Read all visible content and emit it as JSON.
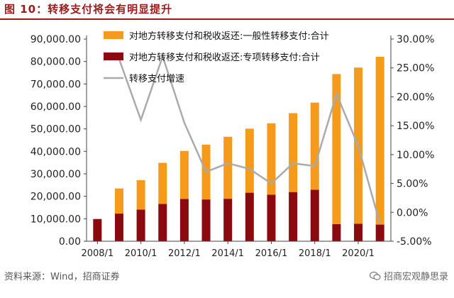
{
  "figure": {
    "title": "图 10：转移支付将会有明显提升",
    "source": "资料来源：Wind，招商证券",
    "watermark": "招商宏观静思录"
  },
  "colors": {
    "general_transfer": "#f59a1a",
    "special_transfer": "#8b0a0f",
    "growth_line": "#aaaaaa",
    "title_red": "#9b1b1b"
  },
  "chart_data": {
    "type": "bar",
    "stacked": true,
    "categories": [
      "2008/1",
      "2009/1",
      "2010/1",
      "2011/1",
      "2012/1",
      "2013/1",
      "2014/1",
      "2015/1",
      "2016/1",
      "2017/1",
      "2018/1",
      "2019/1",
      "2020/1",
      "2021/1"
    ],
    "x_tick_labels": [
      "2008/1",
      "2010/1",
      "2012/1",
      "2014/1",
      "2016/1",
      "2018/1",
      "2020/1"
    ],
    "series": [
      {
        "name": "对地方转移支付和税收返还:专项转移支付:合计",
        "type": "bar",
        "axis": "left",
        "values": [
          9900,
          12300,
          14100,
          16600,
          18800,
          18600,
          18900,
          21600,
          20700,
          21900,
          22900,
          7600,
          7800,
          7400
        ]
      },
      {
        "name": "对地方转移支付和税收返还:一般性转移支付:合计",
        "type": "bar",
        "axis": "left",
        "values": [
          null,
          11200,
          13100,
          18300,
          21400,
          24400,
          27600,
          28500,
          31800,
          35100,
          38800,
          66800,
          69500,
          74700
        ]
      },
      {
        "name": "转移支付增速",
        "type": "line",
        "axis": "right",
        "values": [
          null,
          26.5,
          16.0,
          27.0,
          15.5,
          7.0,
          8.5,
          7.5,
          5.0,
          8.5,
          8.0,
          20.5,
          11.5,
          -2.0
        ]
      }
    ],
    "left_axis": {
      "min": 0,
      "max": 90000,
      "step": 10000,
      "tick_labels": [
        "0.00",
        "10,000.00",
        "20,000.00",
        "30,000.00",
        "40,000.00",
        "50,000.00",
        "60,000.00",
        "70,000.00",
        "80,000.00",
        "90,000.00"
      ]
    },
    "right_axis": {
      "min": -5,
      "max": 30,
      "step": 5,
      "tick_labels": [
        "-5.00%",
        "0.00%",
        "5.00%",
        "10.00%",
        "15.00%",
        "20.00%",
        "25.00%",
        "30.00%"
      ]
    },
    "legend_position": "top-left",
    "grid": false
  }
}
